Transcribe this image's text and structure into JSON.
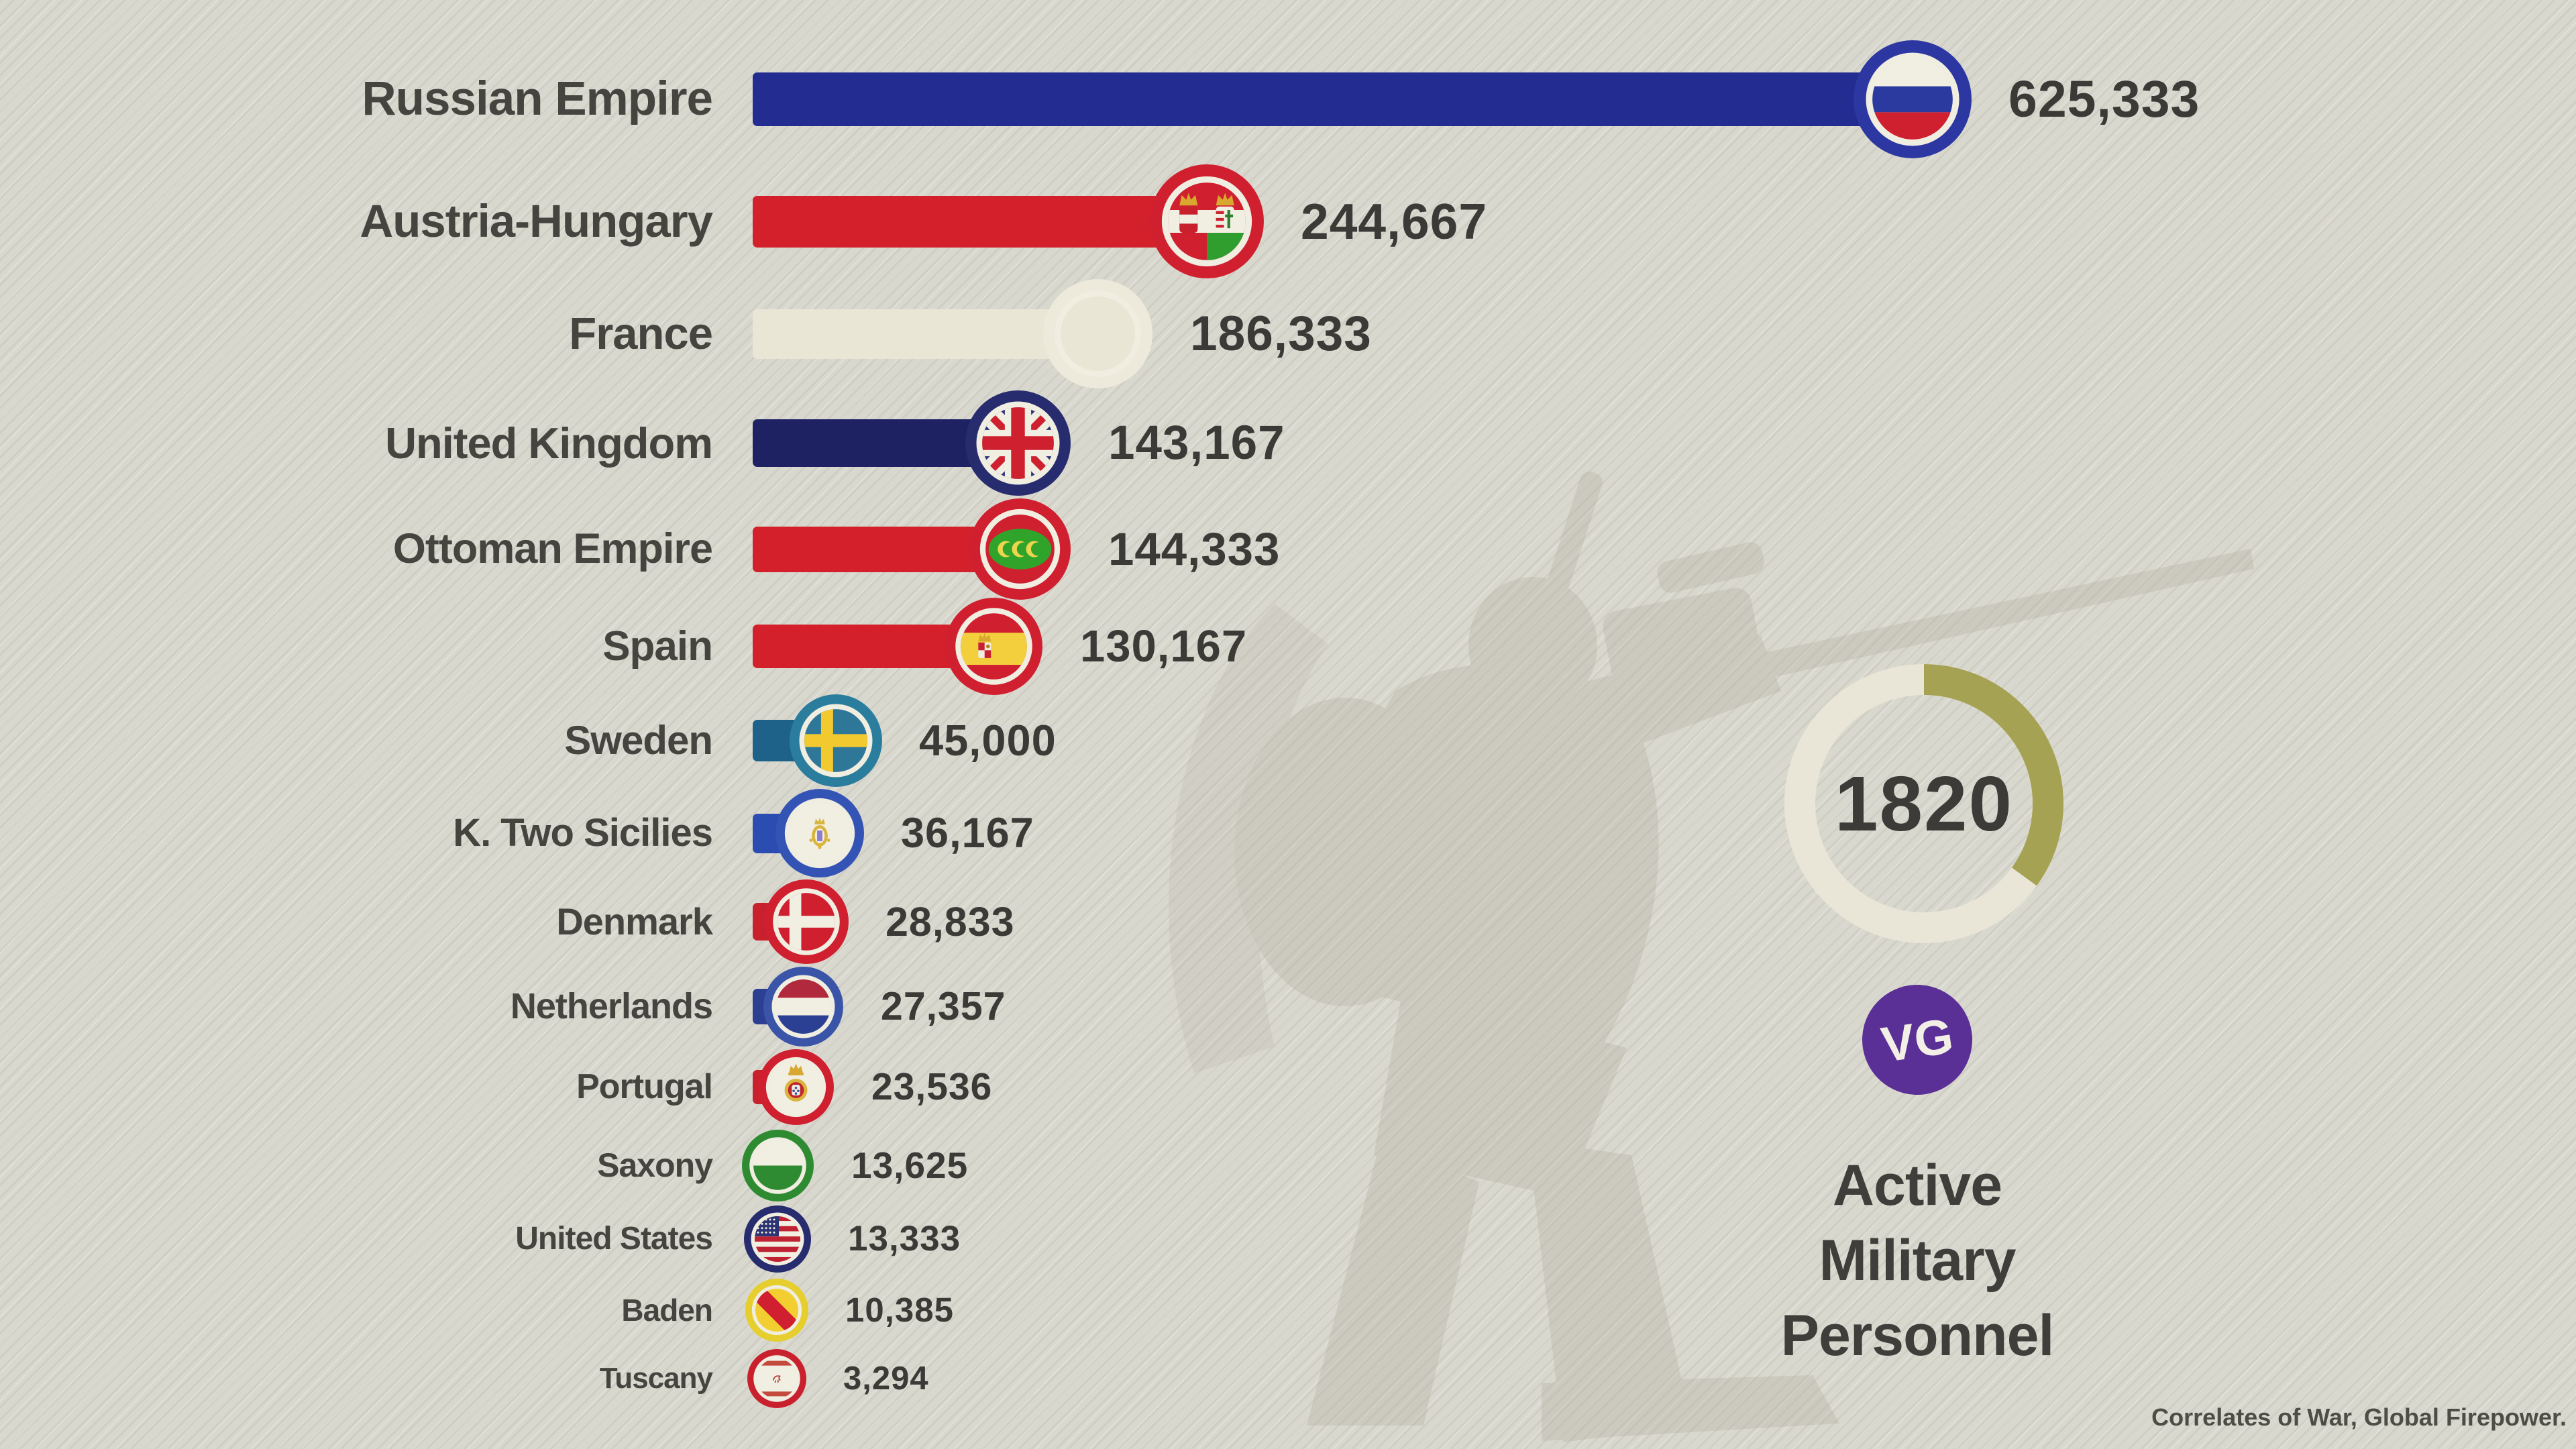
{
  "title": {
    "line1": "Active",
    "line2": "Military",
    "line3": "Personnel",
    "full": "Active Military Personnel"
  },
  "year_panel": {
    "year": "1820",
    "progress_fraction": 0.35,
    "ring_color": "#e9e6d8",
    "arc_color": "#a6a254"
  },
  "logo": {
    "text": "VG",
    "bg_color": "#5a2f96",
    "text_color": "#f2efe6"
  },
  "source": "Correlates of War, Global Firepower.",
  "colors": {
    "background": "#d9d8cf",
    "label_text": "#45443f",
    "value_text": "#3b3a36"
  },
  "chart_data": {
    "type": "bar",
    "orientation": "horizontal",
    "title": "Active Military Personnel",
    "year": "1820",
    "unit": "personnel",
    "legend": "none",
    "grid": false,
    "xlim": [
      0,
      650000
    ],
    "categories": [
      "Russian Empire",
      "Austria-Hungary",
      "France",
      "United Kingdom",
      "Ottoman Empire",
      "Spain",
      "Sweden",
      "K. Two Sicilies",
      "Denmark",
      "Netherlands",
      "Portugal",
      "Saxony",
      "United States",
      "Baden",
      "Tuscany"
    ],
    "values": [
      625333,
      244667,
      186333,
      143167,
      144333,
      130167,
      45000,
      36167,
      28833,
      27357,
      23536,
      13625,
      13333,
      10385,
      3294
    ],
    "value_labels": [
      "625,333",
      "244,667",
      "186,333",
      "143,167",
      "144,333",
      "130,167",
      "45,000",
      "36,167",
      "28,833",
      "27,357",
      "23,536",
      "13,625",
      "13,333",
      "10,385",
      "3,294"
    ],
    "bar_colors": [
      "#222c91",
      "#d3202a",
      "#e9e6d6",
      "#1e2262",
      "#d3202a",
      "#d3202a",
      "#1f6289",
      "#2b4cb0",
      "#c9202e",
      "#2b3f93",
      "#c9202e",
      "#2e8b31",
      "#272c6e",
      "#e8ce2e",
      "#c9202e"
    ],
    "ring_colors": [
      "#2c37a1",
      "#d02030",
      "#edeadc",
      "#272c6e",
      "#d02030",
      "#d02030",
      "#2a7d9d",
      "#3354b5",
      "#d02030",
      "#3a55a8",
      "#d02030",
      "#2e8b31",
      "#272c6e",
      "#e5ce2d",
      "#c9202e"
    ],
    "flags": [
      "russia",
      "austria-hungary",
      "france-bourbon",
      "united-kingdom",
      "ottoman-empire",
      "spain",
      "sweden",
      "two-sicilies",
      "denmark",
      "netherlands",
      "portugal",
      "saxony",
      "united-states",
      "baden",
      "tuscany"
    ]
  }
}
